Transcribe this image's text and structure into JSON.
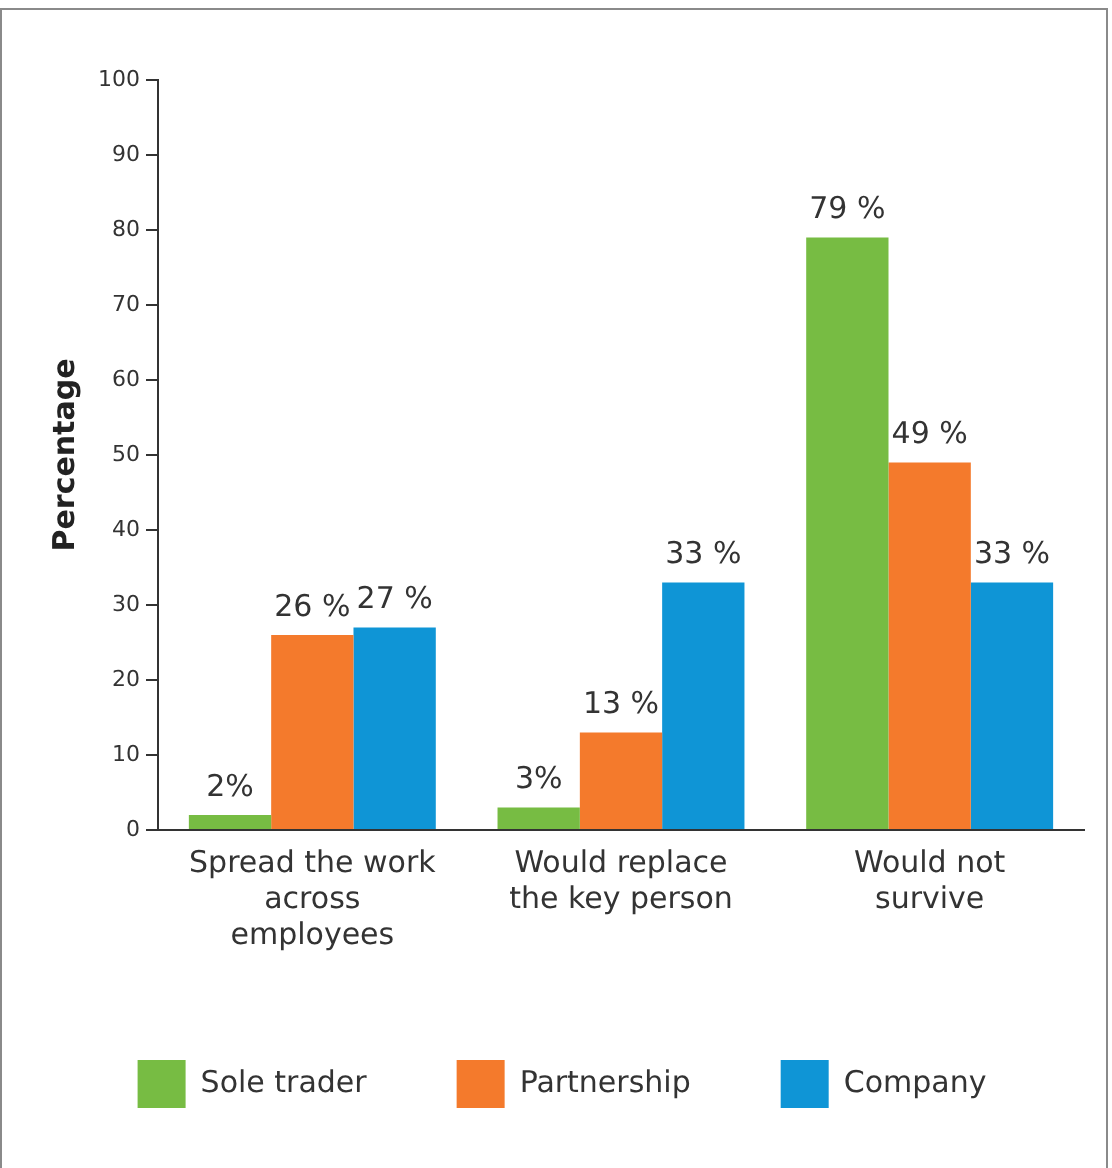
{
  "chart_data": {
    "type": "bar",
    "ylabel": "Percentage",
    "categories": [
      "Spread the work across employees",
      "Would replace the key person",
      "Would not survive"
    ],
    "series": [
      {
        "name": "Sole trader",
        "color": "#77bc43",
        "values": [
          2,
          3,
          79
        ],
        "value_labels": [
          "2%",
          "3%",
          "79 %"
        ]
      },
      {
        "name": "Partnership",
        "color": "#f47a2c",
        "values": [
          26,
          13,
          49
        ],
        "value_labels": [
          "26 %",
          "13 %",
          "49 %"
        ]
      },
      {
        "name": "Company",
        "color": "#0f95d6",
        "values": [
          27,
          33,
          33
        ],
        "value_labels": [
          "27 %",
          "33 %",
          "33 %"
        ]
      }
    ],
    "ylim": [
      0,
      100
    ],
    "yticks": [
      0,
      10,
      20,
      30,
      40,
      50,
      60,
      70,
      80,
      90,
      100
    ],
    "grid": false,
    "legend": "bottom"
  }
}
